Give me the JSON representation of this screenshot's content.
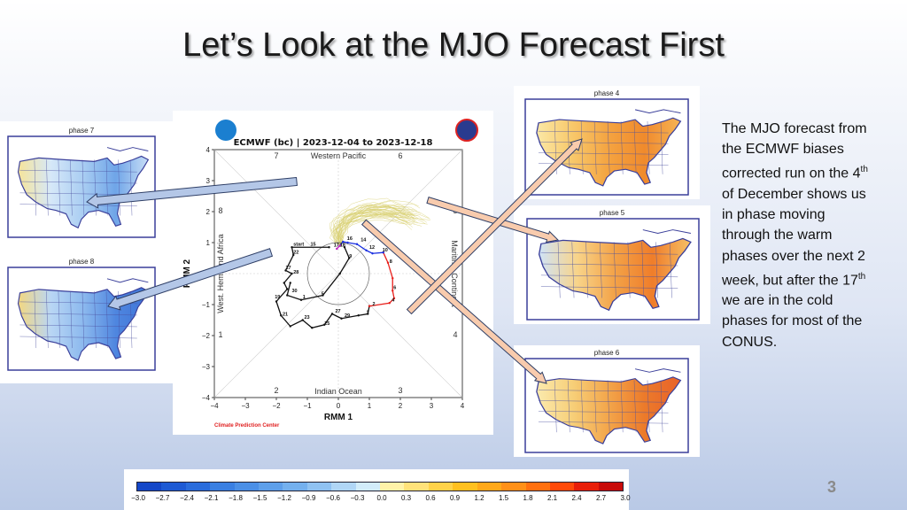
{
  "slide": {
    "title": "Let’s Look at the MJO Forecast First",
    "page_number": "3"
  },
  "description": {
    "lines": [
      {
        "text": "The MJO forecast from"
      },
      {
        "text": "the ECMWF biases"
      },
      {
        "text": "corrected run on the 4",
        "sup": "th"
      },
      {
        "text": "of December shows  us"
      },
      {
        "text": "in phase  moving"
      },
      {
        "text": "through the warm"
      },
      {
        "text": "phases over the next 2"
      },
      {
        "text": "week, but after the 17",
        "sup": "th"
      },
      {
        "text": "we are in the cold"
      },
      {
        "text": "phases for most of the"
      },
      {
        "text": "CONUS."
      }
    ]
  },
  "maps": [
    {
      "label": "phase 7",
      "colors": [
        "#f6e49a",
        "#d6e8f8",
        "#a9cdf2",
        "#6fa5e8",
        "#c8def6"
      ]
    },
    {
      "label": "phase 8",
      "colors": [
        "#f3d780",
        "#b9d6f4",
        "#8cb9ee",
        "#4f86df",
        "#3f75d8"
      ]
    },
    {
      "label": "phase 4",
      "colors": [
        "#fbe8a6",
        "#f8c86a",
        "#f4a340",
        "#f08a2c",
        "#f6b455"
      ]
    },
    {
      "label": "phase 5",
      "colors": [
        "#cfe3f8",
        "#f8d48a",
        "#f3a247",
        "#ef7d2a",
        "#f6c066"
      ]
    },
    {
      "label": "phase 6",
      "colors": [
        "#fbeaae",
        "#f7cf78",
        "#f3a54a",
        "#ec7a2a",
        "#e8622a"
      ]
    }
  ],
  "chart_data": {
    "type": "line",
    "title": "ECMWF (bc) | 2023-12-04 to 2023-12-18",
    "xlabel": "RMM 1",
    "ylabel": "RMM 2",
    "xlim": [
      -4,
      4
    ],
    "ylim": [
      -4,
      4
    ],
    "xticks": [
      "−4",
      "−3",
      "−2",
      "−1",
      "0",
      "1",
      "2",
      "3",
      "4"
    ],
    "yticks": [
      "−4",
      "−3",
      "−2",
      "−1",
      "0",
      "1",
      "2",
      "3",
      "4"
    ],
    "phase_labels": [
      "1",
      "2",
      "3",
      "4",
      "5",
      "6",
      "7",
      "8"
    ],
    "region_labels": {
      "top": "Western Pacific",
      "bottom": "Indian Ocean",
      "left": "West. Hem. and Africa",
      "right": "Maritime Continent"
    },
    "credit": "Climate Prediction Center",
    "unit_circle_radius": 1,
    "series": [
      {
        "color": "#111111",
        "points": [
          [
            -0.3,
            0.85
          ],
          [
            -1.5,
            0.85
          ],
          [
            -1.45,
            0.6
          ],
          [
            -1.7,
            0.1
          ],
          [
            -1.5,
            0.0
          ],
          [
            -1.75,
            -0.3
          ],
          [
            -1.65,
            -0.5
          ],
          [
            -2.0,
            -0.9
          ],
          [
            -1.85,
            -1.35
          ],
          [
            -1.55,
            -1.7
          ],
          [
            -1.15,
            -1.5
          ],
          [
            -0.85,
            -1.75
          ],
          [
            -0.45,
            -1.65
          ],
          [
            -0.2,
            -1.3
          ],
          [
            0.1,
            -1.45
          ],
          [
            0.65,
            -1.35
          ],
          [
            0.95,
            -1.3
          ],
          [
            1.0,
            -1.05
          ]
        ]
      },
      {
        "color": "#111111",
        "points": [
          [
            -1.55,
            -0.3
          ],
          [
            -1.65,
            -0.7
          ],
          [
            -1.2,
            -0.85
          ],
          [
            -0.5,
            -0.7
          ],
          [
            0.05,
            0.0
          ],
          [
            0.35,
            0.5
          ],
          [
            0.2,
            0.85
          ]
        ]
      },
      {
        "color": "#e8201c",
        "points": [
          [
            1.0,
            -1.05
          ],
          [
            1.65,
            -0.95
          ],
          [
            1.8,
            -0.8
          ],
          [
            1.75,
            -0.55
          ],
          [
            1.75,
            -0.15
          ],
          [
            1.6,
            0.35
          ],
          [
            1.45,
            0.68
          ]
        ]
      },
      {
        "color": "#1a2fe0",
        "points": [
          [
            1.45,
            0.68
          ],
          [
            1.1,
            0.65
          ],
          [
            0.9,
            0.75
          ],
          [
            0.6,
            0.95
          ],
          [
            0.3,
            1.0
          ],
          [
            0.15,
            1.03
          ],
          [
            0.05,
            0.9
          ]
        ]
      },
      {
        "color": "#c020c0",
        "points": [
          [
            0.05,
            0.9
          ],
          [
            -0.05,
            0.8
          ]
        ]
      }
    ],
    "point_labels": [
      {
        "t": "start",
        "x": -1.45,
        "y": 0.9
      },
      {
        "t": "15",
        "x": -0.9,
        "y": 0.9
      },
      {
        "t": "17",
        "x": -0.15,
        "y": 0.87
      },
      {
        "t": "18",
        "x": 0.05,
        "y": 0.87
      },
      {
        "t": "16",
        "x": 0.28,
        "y": 1.08
      },
      {
        "t": "14",
        "x": 0.72,
        "y": 1.05
      },
      {
        "t": "12",
        "x": 1.0,
        "y": 0.8
      },
      {
        "t": "10",
        "x": 1.42,
        "y": 0.72
      },
      {
        "t": "9",
        "x": 0.35,
        "y": 0.52
      },
      {
        "t": "8",
        "x": 1.65,
        "y": 0.35
      },
      {
        "t": "6",
        "x": 1.78,
        "y": -0.5
      },
      {
        "t": "4",
        "x": 1.72,
        "y": -0.9
      },
      {
        "t": "2",
        "x": 1.1,
        "y": -1.03
      },
      {
        "t": "1",
        "x": 0.9,
        "y": -1.3
      },
      {
        "t": "29",
        "x": 0.2,
        "y": -1.4
      },
      {
        "t": "27",
        "x": -0.1,
        "y": -1.25
      },
      {
        "t": "25",
        "x": -0.45,
        "y": -1.65
      },
      {
        "t": "23",
        "x": -1.1,
        "y": -1.45
      },
      {
        "t": "21",
        "x": -1.8,
        "y": -1.35
      },
      {
        "t": "19",
        "x": -2.05,
        "y": -0.8
      },
      {
        "t": "30",
        "x": -1.5,
        "y": -0.6
      },
      {
        "t": "1",
        "x": -1.15,
        "y": -0.8
      },
      {
        "t": "28",
        "x": -1.45,
        "y": 0.0
      },
      {
        "t": "27",
        "x": -1.7,
        "y": 0.15
      },
      {
        "t": "22",
        "x": -1.45,
        "y": 0.65
      },
      {
        "t": "5",
        "x": -0.55,
        "y": -0.7
      }
    ],
    "ensemble_color": "#d8d070"
  },
  "colorbar": {
    "ticks": [
      "−3.0",
      "−2.7",
      "−2.4",
      "−2.1",
      "−1.8",
      "−1.5",
      "−1.2",
      "−0.9",
      "−0.6",
      "−0.3",
      "0.0",
      "0.3",
      "0.6",
      "0.9",
      "1.2",
      "1.5",
      "1.8",
      "2.1",
      "2.4",
      "2.7",
      "3.0"
    ],
    "colors": [
      "#1447c8",
      "#1e5ad4",
      "#2a6cdc",
      "#3a7fe2",
      "#4b8fe6",
      "#5e9fea",
      "#74b0ee",
      "#90c2f2",
      "#b0d6f6",
      "#d2ecfa",
      "#fff2a8",
      "#ffe27a",
      "#ffd24a",
      "#ffc020",
      "#ffa81a",
      "#ff9018",
      "#ff7010",
      "#ff4a0a",
      "#e81e0a",
      "#c80a0a"
    ]
  },
  "arrows": {
    "blue": "#b4c7e7",
    "peach": "#f8cbad",
    "outline": "#2f3f66"
  }
}
